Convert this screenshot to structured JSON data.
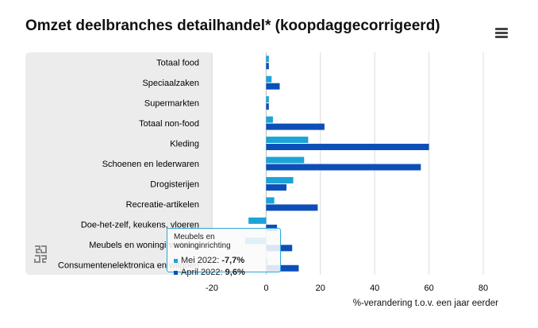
{
  "title": "Omzet deelbranches detailhandel* (koopdaggecorrigeerd)",
  "menu_icon": "hamburger-menu-icon",
  "logo_icon": "cbs-logo-icon",
  "colors": {
    "mei": "#1ca3d8",
    "april": "#0d4fb8",
    "panel": "#ececec",
    "grid": "#dcdcdc"
  },
  "chart_data": {
    "type": "bar",
    "orientation": "horizontal",
    "categories": [
      "Totaal food",
      "Speciaalzaken",
      "Supermarkten",
      "Totaal non-food",
      "Kleding",
      "Schoenen en lederwaren",
      "Drogisterijen",
      "Recreatie-artikelen",
      "Doe-het-zelf, keukens, vloeren",
      "Meubels en woninginrichting",
      "Consumentenelektronica en witgoed"
    ],
    "series": [
      {
        "name": "Mei 2022",
        "values": [
          1.0,
          2.0,
          1.0,
          2.5,
          15.5,
          14.0,
          10.0,
          3.0,
          -6.5,
          -7.7,
          0.5
        ]
      },
      {
        "name": "April 2022",
        "values": [
          1.0,
          5.0,
          1.0,
          21.5,
          60.0,
          57.0,
          7.5,
          19.0,
          4.0,
          9.6,
          12.0
        ]
      }
    ],
    "xlabel": "%-verandering t.o.v. een jaar eerder",
    "xlim": [
      -20,
      80
    ],
    "xticks": [
      "-20",
      "0",
      "20",
      "40",
      "60",
      "80"
    ],
    "grid": true
  },
  "tooltip": {
    "header": "Meubels en woninginrichting",
    "rows": [
      {
        "label": "Mei 2022: ",
        "value": "-7,7%"
      },
      {
        "label": "April 2022: ",
        "value": "9,6%"
      }
    ]
  }
}
